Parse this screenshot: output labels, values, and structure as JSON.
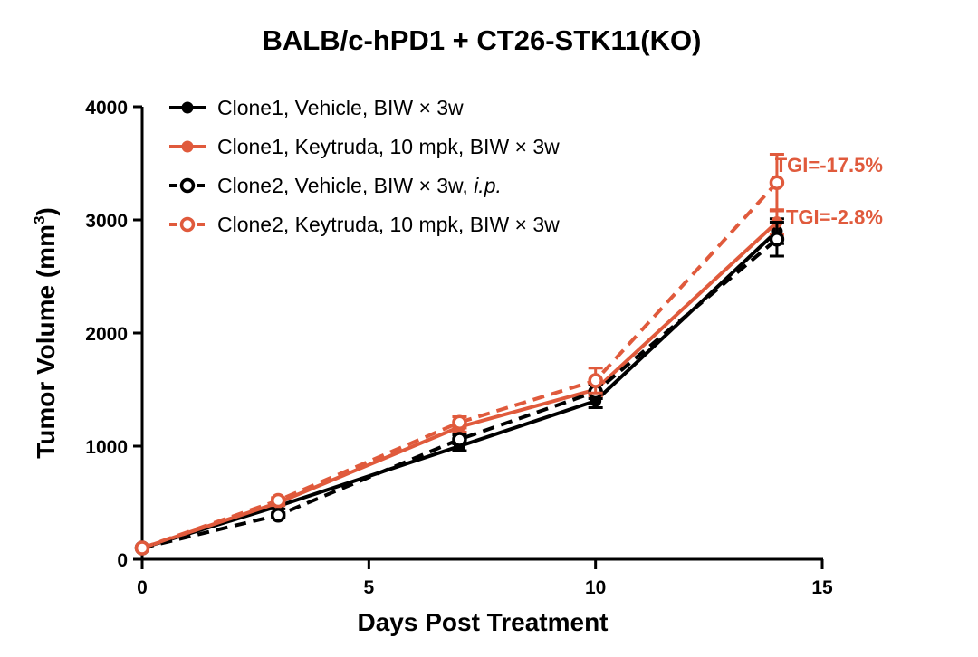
{
  "chart_data": {
    "type": "line",
    "title": "BALB/c-hPD1 + CT26-STK11(KO)",
    "xlabel": "Days Post Treatment",
    "ylabel": "Tumor Volume (mm",
    "ylabel_superscript": "3",
    "ylabel_suffix": ")",
    "xlim": [
      0,
      15
    ],
    "ylim": [
      0,
      4000
    ],
    "x_ticks": [
      0,
      5,
      10,
      15
    ],
    "x_tick_labels": [
      "0",
      "5",
      "10",
      "15"
    ],
    "y_ticks": [
      0,
      1000,
      2000,
      3000,
      4000
    ],
    "y_tick_labels": [
      "0",
      "1000",
      "2000",
      "3000",
      "4000"
    ],
    "grid": false,
    "legend_position": "top-left",
    "series": [
      {
        "name": "Clone1, Vehicle, BIW × 3w",
        "label_parts": [
          "Clone1, Vehicle, BIW × 3w"
        ],
        "color": "#000000",
        "marker": "filled-circle",
        "line": "solid",
        "x": [
          0,
          3,
          7,
          10,
          14
        ],
        "y": [
          100,
          470,
          1000,
          1400,
          2900
        ],
        "err": [
          10,
          25,
          40,
          60,
          110
        ]
      },
      {
        "name": "Clone1, Keytruda, 10 mpk, BIW × 3w",
        "label_parts": [
          "Clone1, Keytruda, 10 mpk, BIW × 3w"
        ],
        "color": "#E05A3C",
        "marker": "filled-circle",
        "line": "solid",
        "x": [
          0,
          3,
          7,
          10,
          14
        ],
        "y": [
          100,
          500,
          1170,
          1500,
          2980
        ],
        "err": [
          10,
          25,
          45,
          60,
          110
        ]
      },
      {
        "name": "Clone2, Vehicle, BIW × 3w, i.p.",
        "label_parts": [
          "Clone2, Vehicle, BIW × 3w, ",
          "i.p."
        ],
        "color": "#000000",
        "marker": "open-circle",
        "line": "dashed",
        "x": [
          0,
          3,
          7,
          10,
          14
        ],
        "y": [
          100,
          390,
          1060,
          1480,
          2830
        ],
        "err": [
          10,
          20,
          40,
          60,
          150
        ]
      },
      {
        "name": "Clone2, Keytruda, 10 mpk, BIW × 3w",
        "label_parts": [
          "Clone2, Keytruda, 10 mpk, BIW × 3w"
        ],
        "color": "#E05A3C",
        "marker": "open-circle",
        "line": "dashed",
        "x": [
          0,
          3,
          7,
          10,
          14
        ],
        "y": [
          100,
          520,
          1210,
          1580,
          3330
        ],
        "err": [
          10,
          25,
          50,
          110,
          250
        ]
      }
    ],
    "annotations": [
      {
        "text": "TGI=-17.5%",
        "color": "#E05A3C",
        "x": 14,
        "y": 3490
      },
      {
        "text": "TGI=-2.8%",
        "color": "#E05A3C",
        "x": 14,
        "y": 3030
      }
    ]
  }
}
